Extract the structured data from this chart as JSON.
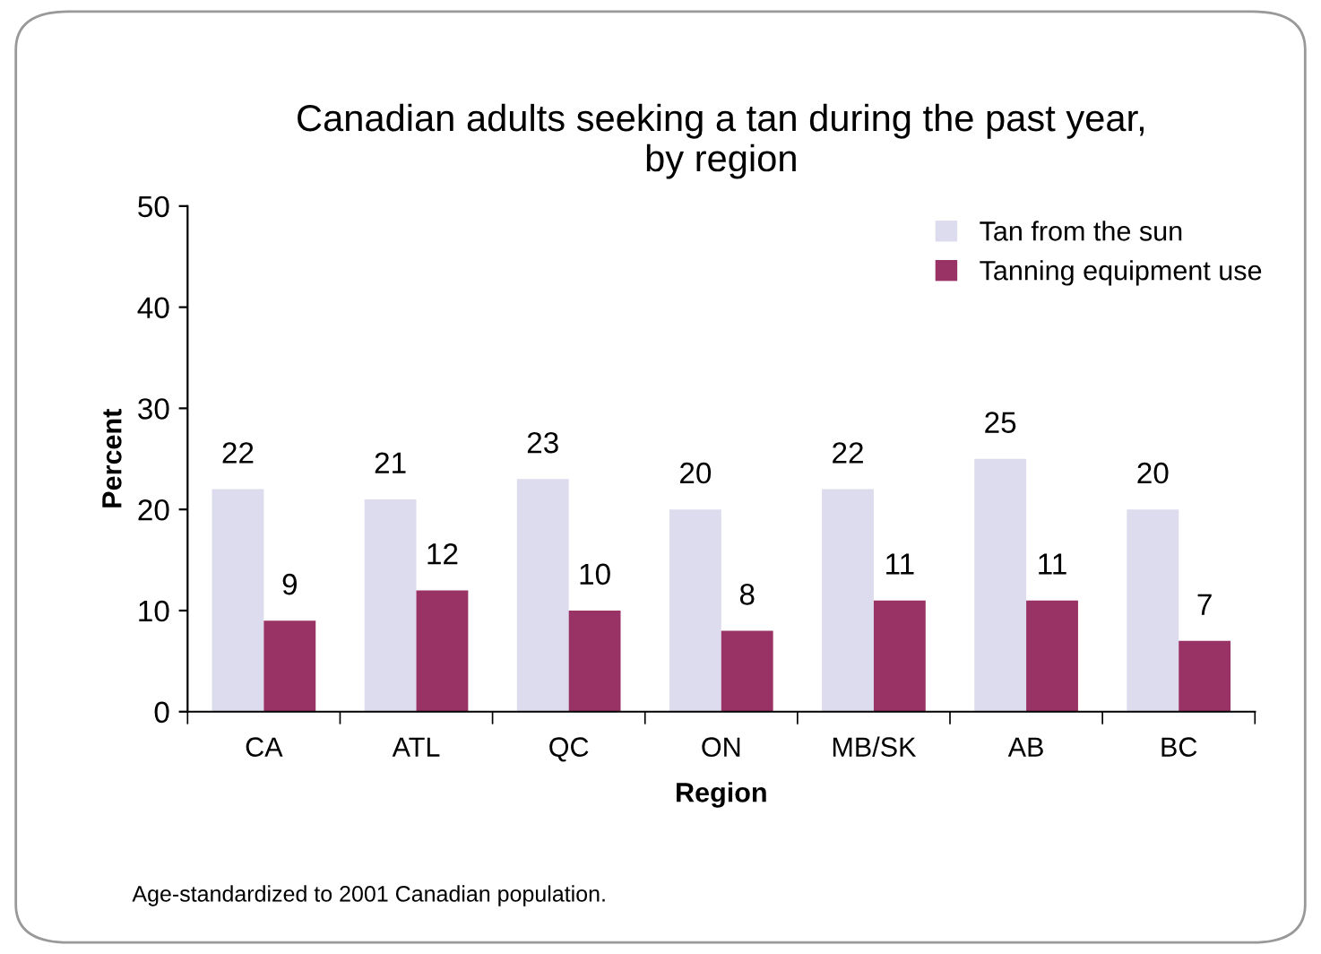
{
  "chart_data": {
    "type": "bar",
    "title": "Canadian adults seeking a tan during the past year,\nby region",
    "xlabel": "Region",
    "ylabel": "Percent",
    "categories": [
      "CA",
      "ATL",
      "QC",
      "ON",
      "MB/SK",
      "AB",
      "BC"
    ],
    "series": [
      {
        "name": "Tan from the sun",
        "color": "#dcdcee",
        "values": [
          22,
          21,
          23,
          20,
          22,
          25,
          20
        ]
      },
      {
        "name": "Tanning equipment use",
        "color": "#993366",
        "values": [
          9,
          12,
          10,
          8,
          11,
          11,
          7
        ]
      }
    ],
    "ylim": [
      0,
      50
    ],
    "yticks": [
      0,
      10,
      20,
      30,
      40,
      50
    ],
    "grid": false,
    "legend": "top right",
    "data_labels": true,
    "annotations": [
      "Age-standardized to 2001 Canadian population."
    ]
  }
}
